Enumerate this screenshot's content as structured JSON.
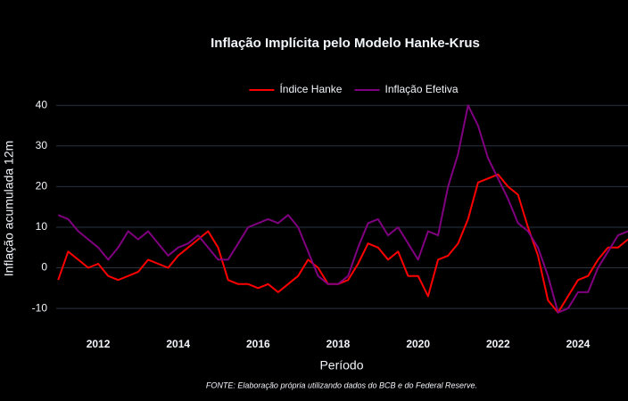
{
  "chart_data": {
    "type": "line",
    "title": "Inflação Implícita pelo Modelo Hanke-Krus",
    "x_label": "Período",
    "y_label": "Inflação acumulada 12m",
    "source": "FONTE: Elaboração própria utilizando dados do BCB e do Federal Reserve.",
    "x": [
      2011,
      2011.25,
      2011.5,
      2011.75,
      2012,
      2012.25,
      2012.5,
      2012.75,
      2013,
      2013.25,
      2013.5,
      2013.75,
      2014,
      2014.25,
      2014.5,
      2014.75,
      2015,
      2015.25,
      2015.5,
      2015.75,
      2016,
      2016.25,
      2016.5,
      2016.75,
      2017,
      2017.25,
      2017.5,
      2017.75,
      2018,
      2018.25,
      2018.5,
      2018.75,
      2019,
      2019.25,
      2019.5,
      2019.75,
      2020,
      2020.25,
      2020.5,
      2020.75,
      2021,
      2021.25,
      2021.5,
      2021.75,
      2022,
      2022.25,
      2022.5,
      2022.75,
      2023,
      2023.25,
      2023.5,
      2023.75,
      2024,
      2024.25,
      2024.5,
      2024.75,
      2025,
      2025.25
    ],
    "series": [
      {
        "name": "Índice Hanke",
        "color": "#ff0000",
        "values": [
          -3,
          4,
          2,
          0,
          1,
          -2,
          -3,
          -2,
          -1,
          2,
          1,
          0,
          3,
          5,
          7,
          9,
          5,
          -3,
          -4,
          -4,
          -5,
          -4,
          -6,
          -4,
          -2,
          2,
          0,
          -4,
          -4,
          -3,
          1,
          6,
          5,
          2,
          4,
          -2,
          -2,
          -7,
          2,
          3,
          6,
          12,
          21,
          22,
          23,
          20,
          18,
          10,
          3,
          -8,
          -11,
          -7,
          -3,
          -2,
          2,
          5,
          5,
          7
        ]
      },
      {
        "name": "Inflação Efetiva",
        "color": "#800080",
        "values": [
          13,
          12,
          9,
          7,
          5,
          2,
          5,
          9,
          7,
          9,
          6,
          3,
          5,
          6,
          8,
          5,
          2,
          2,
          6,
          10,
          11,
          12,
          11,
          13,
          10,
          4,
          -2,
          -4,
          -4,
          -2,
          5,
          11,
          12,
          8,
          10,
          6,
          2,
          9,
          8,
          20,
          28,
          40,
          35,
          27,
          22,
          17,
          11,
          9,
          5,
          -2,
          -11,
          -10,
          -6,
          -6,
          0,
          4,
          8,
          9
        ]
      }
    ],
    "xlim": [
      2010.95,
      2025.25
    ],
    "xticks": [
      2012,
      2014,
      2016,
      2018,
      2020,
      2022,
      2024
    ],
    "ylim": [
      -14.8,
      44
    ],
    "yticks": [
      -10,
      0,
      10,
      20,
      30,
      40
    ],
    "grid": "y",
    "legend": "top"
  }
}
